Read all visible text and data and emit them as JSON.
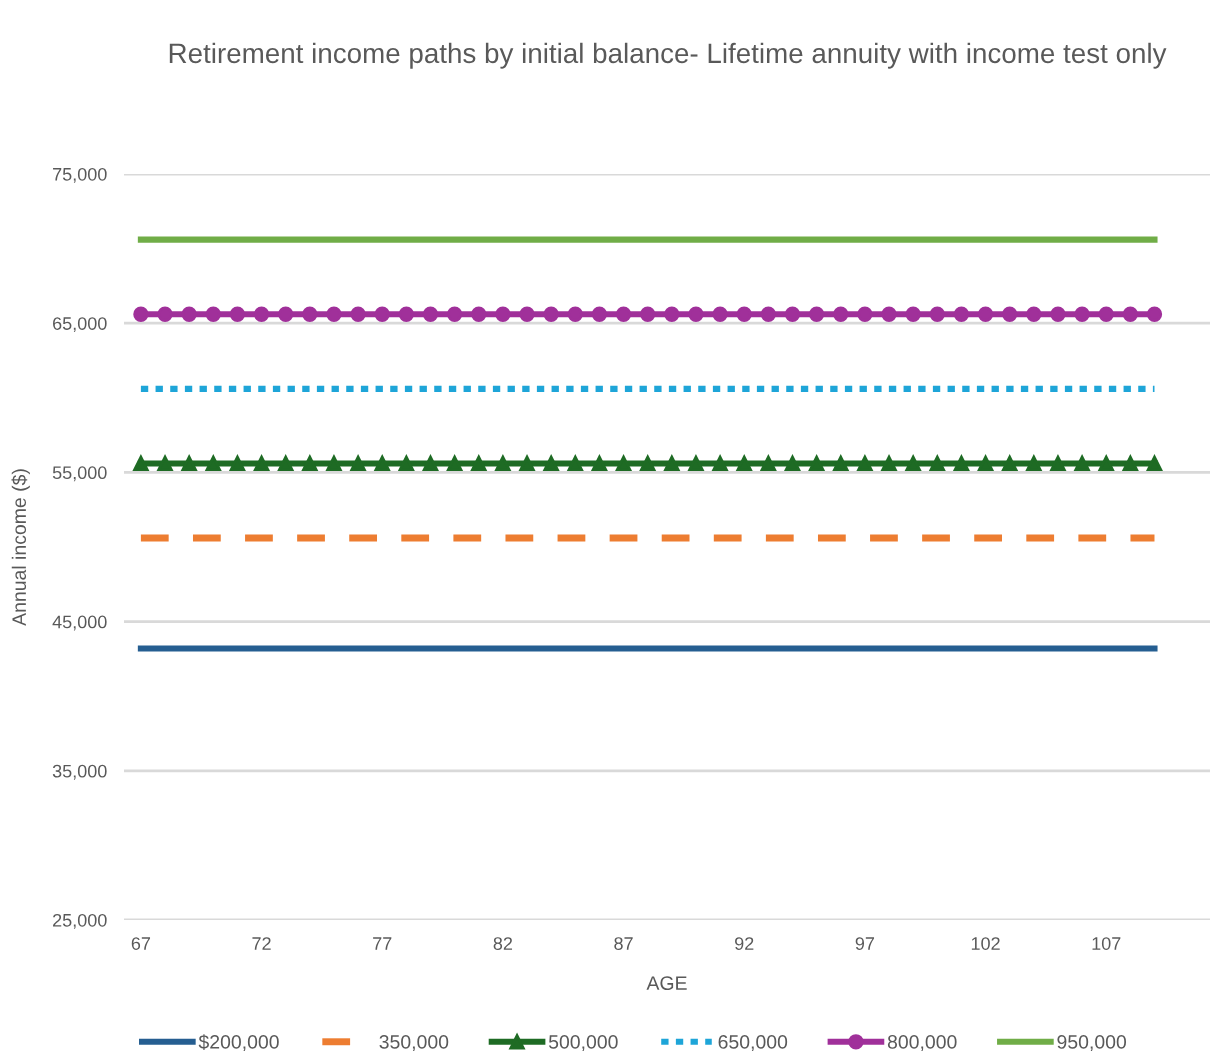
{
  "chart_data": {
    "type": "line",
    "title": "Retirement income paths by initial balance- Lifetime annuity with income test only",
    "xlabel": "AGE",
    "ylabel": "Annual income ($)",
    "categories": [
      "67",
      null,
      null,
      null,
      null,
      "72",
      null,
      null,
      null,
      null,
      "77",
      null,
      null,
      null,
      null,
      "82",
      null,
      null,
      null,
      null,
      "87",
      null,
      null,
      null,
      null,
      "92",
      null,
      null,
      null,
      null,
      "97",
      null,
      null,
      null,
      null,
      "102",
      null,
      null,
      null,
      null,
      "107",
      null,
      null
    ],
    "ylim": [
      25000,
      75000
    ],
    "yticks": [
      {
        "value": 25000,
        "label": "25,000"
      },
      {
        "value": 35000,
        "label": "35,000"
      },
      {
        "value": 45000,
        "label": "45,000"
      },
      {
        "value": 55000,
        "label": "55,000"
      },
      {
        "value": 65000,
        "label": "65,000"
      },
      {
        "value": 75000,
        "label": "75,000"
      }
    ],
    "grid": "y",
    "legend": "bottom",
    "series": [
      {
        "name": "$200,000",
        "color": "#255e91",
        "line_style": "solid",
        "marker": "none",
        "values": [
          43200,
          43200,
          43200,
          43200,
          43200,
          43200,
          43200,
          43200,
          43200,
          43200,
          43200,
          43200,
          43200,
          43200,
          43200,
          43200,
          43200,
          43200,
          43200,
          43200,
          43200,
          43200,
          43200,
          43200,
          43200,
          43200,
          43200,
          43200,
          43200,
          43200,
          43200,
          43200,
          43200,
          43200,
          43200,
          43200,
          43200,
          43200,
          43200,
          43200,
          43200,
          43200,
          43200
        ]
      },
      {
        "name": "350,000",
        "color": "#ed7d31",
        "line_style": "dashed",
        "marker": "none",
        "values": [
          50600,
          50600,
          50600,
          50600,
          50600,
          50600,
          50600,
          50600,
          50600,
          50600,
          50600,
          50600,
          50600,
          50600,
          50600,
          50600,
          50600,
          50600,
          50600,
          50600,
          50600,
          50600,
          50600,
          50600,
          50600,
          50600,
          50600,
          50600,
          50600,
          50600,
          50600,
          50600,
          50600,
          50600,
          50600,
          50600,
          50600,
          50600,
          50600,
          50600,
          50600,
          50600,
          50600
        ]
      },
      {
        "name": "500,000",
        "color": "#1e6b24",
        "line_style": "solid",
        "marker": "triangle",
        "values": [
          55600,
          55600,
          55600,
          55600,
          55600,
          55600,
          55600,
          55600,
          55600,
          55600,
          55600,
          55600,
          55600,
          55600,
          55600,
          55600,
          55600,
          55600,
          55600,
          55600,
          55600,
          55600,
          55600,
          55600,
          55600,
          55600,
          55600,
          55600,
          55600,
          55600,
          55600,
          55600,
          55600,
          55600,
          55600,
          55600,
          55600,
          55600,
          55600,
          55600,
          55600,
          55600,
          55600
        ]
      },
      {
        "name": "650,000",
        "color": "#1ea5d8",
        "line_style": "dotted",
        "marker": "none",
        "values": [
          60600,
          60600,
          60600,
          60600,
          60600,
          60600,
          60600,
          60600,
          60600,
          60600,
          60600,
          60600,
          60600,
          60600,
          60600,
          60600,
          60600,
          60600,
          60600,
          60600,
          60600,
          60600,
          60600,
          60600,
          60600,
          60600,
          60600,
          60600,
          60600,
          60600,
          60600,
          60600,
          60600,
          60600,
          60600,
          60600,
          60600,
          60600,
          60600,
          60600,
          60600,
          60600,
          60600
        ]
      },
      {
        "name": "800,000",
        "color": "#a0309a",
        "line_style": "solid",
        "marker": "circle",
        "values": [
          65600,
          65600,
          65600,
          65600,
          65600,
          65600,
          65600,
          65600,
          65600,
          65600,
          65600,
          65600,
          65600,
          65600,
          65600,
          65600,
          65600,
          65600,
          65600,
          65600,
          65600,
          65600,
          65600,
          65600,
          65600,
          65600,
          65600,
          65600,
          65600,
          65600,
          65600,
          65600,
          65600,
          65600,
          65600,
          65600,
          65600,
          65600,
          65600,
          65600,
          65600,
          65600,
          65600
        ]
      },
      {
        "name": "950,000",
        "color": "#70ad47",
        "line_style": "solid",
        "marker": "none",
        "values": [
          70600,
          70600,
          70600,
          70600,
          70600,
          70600,
          70600,
          70600,
          70600,
          70600,
          70600,
          70600,
          70600,
          70600,
          70600,
          70600,
          70600,
          70600,
          70600,
          70600,
          70600,
          70600,
          70600,
          70600,
          70600,
          70600,
          70600,
          70600,
          70600,
          70600,
          70600,
          70600,
          70600,
          70600,
          70600,
          70600,
          70600,
          70600,
          70600,
          70600,
          70600,
          70600,
          70600
        ]
      }
    ]
  }
}
